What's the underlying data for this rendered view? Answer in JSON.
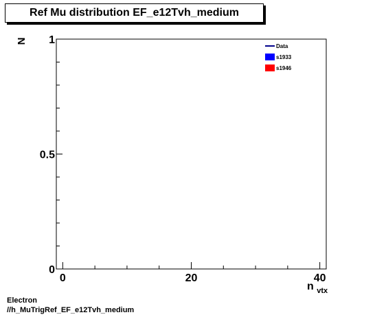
{
  "chart_data": {
    "type": "line",
    "title": "Ref Mu distribution EF_e12Tvh_medium",
    "xlabel_main": "n",
    "xlabel_sub": "vtx",
    "ylabel": "N",
    "xlim": [
      -1,
      41
    ],
    "ylim": [
      0,
      1
    ],
    "x_ticks": [
      0,
      20,
      40
    ],
    "y_ticks": [
      "0",
      "0.5",
      "1"
    ],
    "series": [
      {
        "name": "Data",
        "color": "#00008b",
        "style": "line",
        "values": []
      },
      {
        "name": "s1933",
        "color": "#0000ff",
        "style": "fill",
        "values": []
      },
      {
        "name": "s1946",
        "color": "#ff0000",
        "style": "fill",
        "values": []
      }
    ]
  },
  "footer": {
    "line1": "Electron",
    "line2": "//h_MuTrigRef_EF_e12Tvh_medium"
  }
}
